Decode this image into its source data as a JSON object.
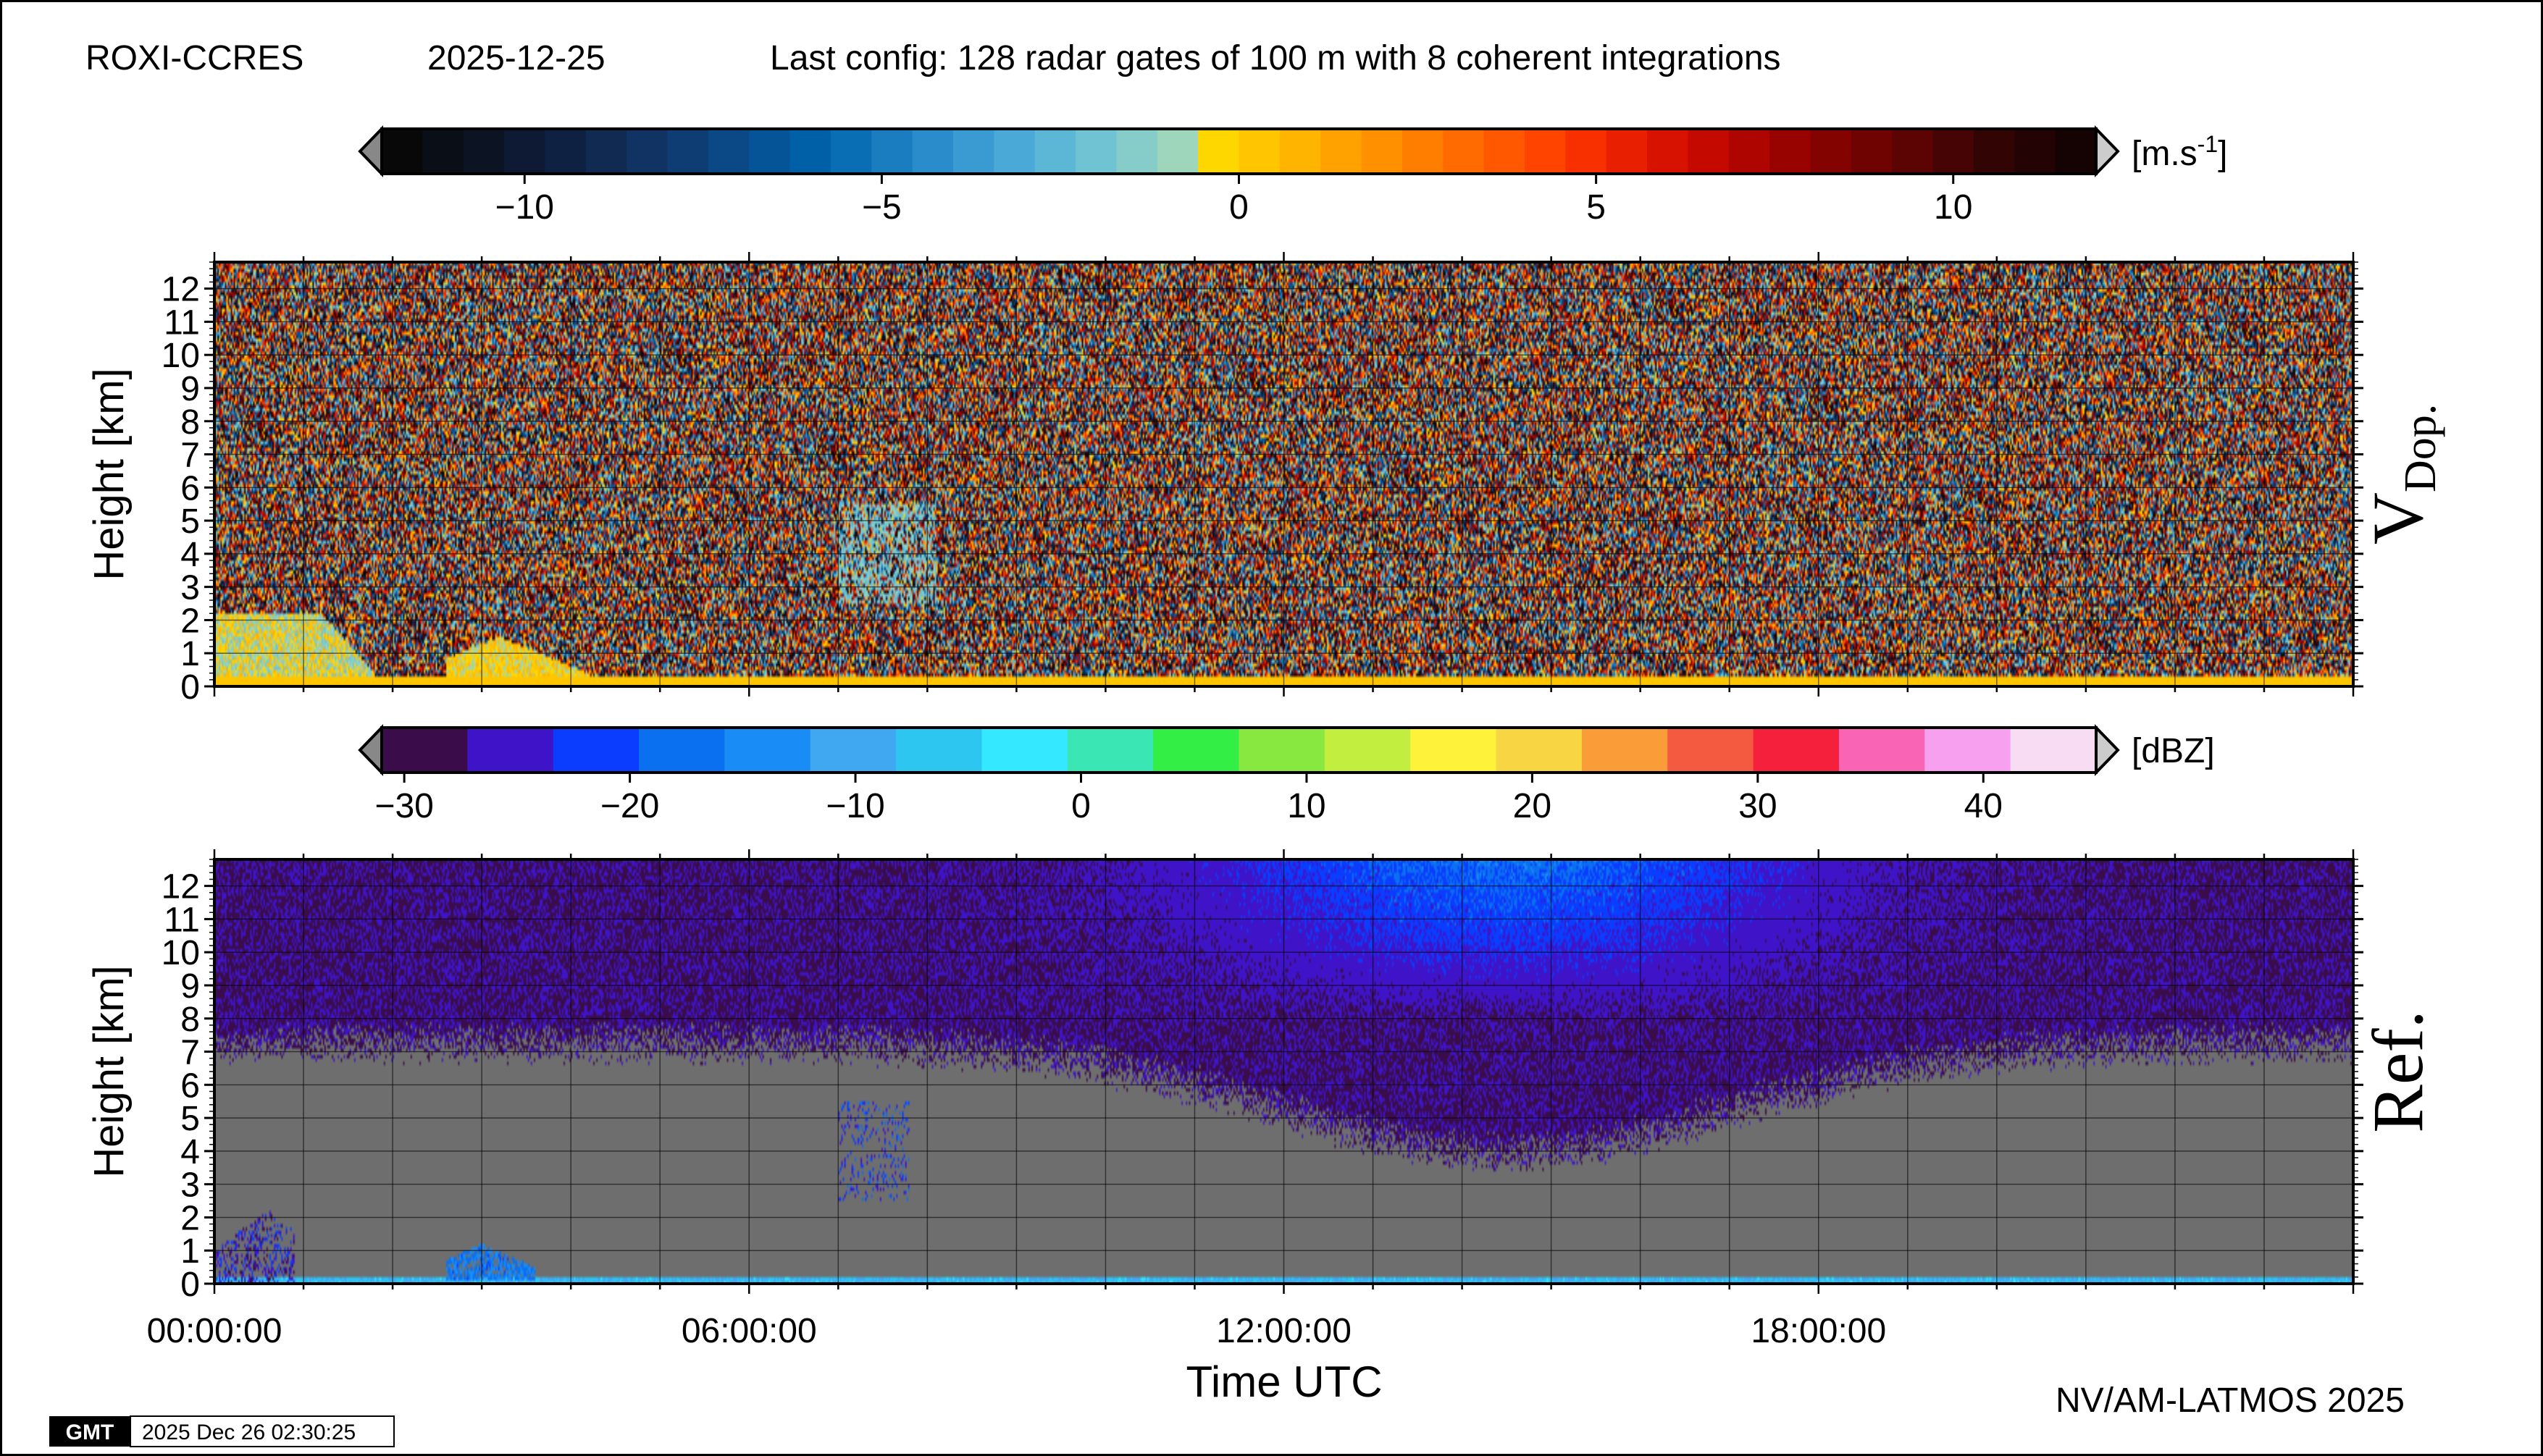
{
  "header": {
    "station": "ROXI-CCRES",
    "date": "2025-12-25",
    "config": "Last config: 128 radar gates of 100 m with 8 coherent integrations"
  },
  "footer": {
    "credit": "NV/AM-LATMOS 2025",
    "gmt_logo": "GMT",
    "timestamp": "2025 Dec 26 02:30:25"
  },
  "colors": {
    "background": "#ffffff",
    "missing_data": "#6e6e6e"
  },
  "colorbars": {
    "velocity": {
      "unit_base": "[m.s",
      "unit_exp": "-1",
      "unit_close": "]",
      "min": -12,
      "max": 12,
      "ticks": [
        {
          "value": -10,
          "label": "−10"
        },
        {
          "value": -5,
          "label": "−5"
        },
        {
          "value": 0,
          "label": "0"
        },
        {
          "value": 5,
          "label": "5"
        },
        {
          "value": 10,
          "label": "10"
        }
      ],
      "colors": [
        "#080808",
        "#0a0e16",
        "#0c1424",
        "#0e1a33",
        "#0f2142",
        "#102a52",
        "#103363",
        "#0e3d74",
        "#0a4886",
        "#045497",
        "#0060a7",
        "#0a6eb4",
        "#1a7dc0",
        "#2a8ccb",
        "#3a9bd3",
        "#4aa9d6",
        "#5cb7d6",
        "#70c3d2",
        "#86cdc9",
        "#9dd6bb",
        "#ffd700",
        "#ffc600",
        "#ffb400",
        "#ffa200",
        "#ff9000",
        "#ff7e00",
        "#ff6b00",
        "#ff5800",
        "#ff4400",
        "#f83000",
        "#e81f00",
        "#d81200",
        "#c40a00",
        "#ae0500",
        "#980300",
        "#830300",
        "#6f0302",
        "#5b0403",
        "#470404",
        "#330404",
        "#230303",
        "#150202"
      ]
    },
    "reflectivity": {
      "unit": "[dBZ]",
      "min": -31,
      "max": 45,
      "ticks": [
        {
          "value": -30,
          "label": "−30"
        },
        {
          "value": -20,
          "label": "−20"
        },
        {
          "value": -10,
          "label": "−10"
        },
        {
          "value": 0,
          "label": "0"
        },
        {
          "value": 10,
          "label": "10"
        },
        {
          "value": 20,
          "label": "20"
        },
        {
          "value": 30,
          "label": "30"
        },
        {
          "value": 40,
          "label": "40"
        }
      ],
      "colors": [
        "#3a0d4a",
        "#3f14c8",
        "#0a3dff",
        "#0a70f0",
        "#1a8cf5",
        "#40a8f0",
        "#2cc6f0",
        "#33e8ff",
        "#3ae6b4",
        "#33ee44",
        "#88e83f",
        "#c2ee3f",
        "#fff23a",
        "#f8d542",
        "#fa9c38",
        "#f45a40",
        "#f4203c",
        "#fa64b4",
        "#f8a0f0",
        "#f8dcf4"
      ]
    }
  },
  "chart_data": [
    {
      "type": "heatmap",
      "panel": "Doppler velocity",
      "label_main": "V",
      "label_sub": "Dop.",
      "xlabel": "",
      "ylabel": "Height [km]",
      "xlim": [
        0,
        24
      ],
      "ylim": [
        0,
        12.8
      ],
      "y_ticks": [
        0,
        1,
        2,
        3,
        4,
        5,
        6,
        7,
        8,
        9,
        10,
        11,
        12
      ],
      "colorbar": "velocity",
      "background": "noise (random velocities over full range)",
      "features": [
        {
          "name": "boundary layer echo",
          "hours": [
            0.0,
            1.8
          ],
          "height_km": [
            0.0,
            2.2
          ],
          "velocity_range": [
            -2,
            1
          ]
        },
        {
          "name": "low cloud",
          "hours": [
            2.6,
            4.2
          ],
          "height_km": [
            0.1,
            1.5
          ],
          "velocity_range": [
            -1,
            1
          ]
        },
        {
          "name": "surface clutter",
          "hours": [
            0,
            24
          ],
          "height_km": [
            0.0,
            0.3
          ],
          "velocity_range": [
            0,
            0.5
          ]
        },
        {
          "name": "mid-level echo",
          "hours": [
            7.0,
            8.1
          ],
          "height_km": [
            2.5,
            5.5
          ],
          "velocity_range": [
            -2.5,
            -1
          ]
        }
      ]
    },
    {
      "type": "heatmap",
      "panel": "Reflectivity",
      "label_main": "Ref.",
      "xlabel": "Time UTC",
      "ylabel": "Height [km]",
      "xlim": [
        0,
        24
      ],
      "ylim": [
        0,
        12.8
      ],
      "x_ticks": [
        {
          "value": 0,
          "label": "00:00:00"
        },
        {
          "value": 6,
          "label": "06:00:00"
        },
        {
          "value": 12,
          "label": "12:00:00"
        },
        {
          "value": 18,
          "label": "18:00:00"
        }
      ],
      "y_ticks": [
        0,
        1,
        2,
        3,
        4,
        5,
        6,
        7,
        8,
        9,
        10,
        11,
        12
      ],
      "colorbar": "reflectivity",
      "background": "noise floor about -29 dBZ aloft (up to about -20 dBZ near 14-16 UTC above 9 km), grey missing data below about 6-7 km",
      "features": [
        {
          "name": "surface echo",
          "hours": [
            0,
            24
          ],
          "height_km": [
            0.0,
            0.2
          ],
          "dbz": -8
        },
        {
          "name": "boundary layer echo",
          "hours": [
            0.0,
            0.9
          ],
          "height_km": [
            0.0,
            2.2
          ],
          "dbz": -25
        },
        {
          "name": "low cloud",
          "hours": [
            2.6,
            3.6
          ],
          "height_km": [
            0.1,
            1.2
          ],
          "dbz": -16
        },
        {
          "name": "mid-level echo",
          "hours": [
            7.0,
            7.8
          ],
          "height_km": [
            2.5,
            5.5
          ],
          "dbz": -22
        }
      ]
    }
  ]
}
